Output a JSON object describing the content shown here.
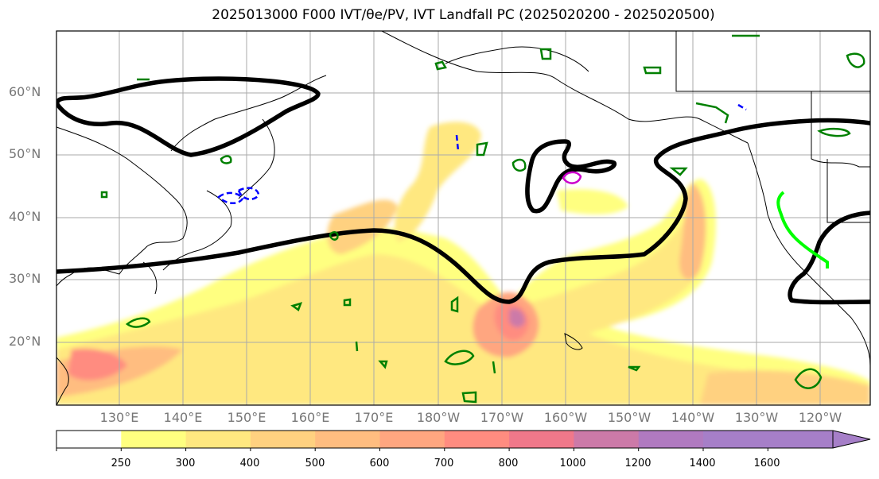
{
  "title": "2025013000 F000 IVT/θe/PV, IVT Landfall PC (2025020200 - 2025020500)",
  "map": {
    "lat_labels": [
      "60°N",
      "50°N",
      "40°N",
      "30°N",
      "20°N"
    ],
    "lat_values": [
      60,
      50,
      40,
      30,
      20
    ],
    "lon_labels": [
      "130°E",
      "140°E",
      "150°E",
      "160°E",
      "170°E",
      "180°W",
      "170°W",
      "160°W",
      "150°W",
      "140°W",
      "130°W",
      "120°W"
    ],
    "lon_values": [
      130,
      140,
      150,
      160,
      170,
      180,
      190,
      200,
      210,
      220,
      230,
      240
    ],
    "extent": {
      "lon_min": 121,
      "lon_max": 248.5,
      "lat_min": 10,
      "lat_max": 70
    },
    "colors": {
      "ivt_fill": [
        "#ffff80",
        "#ffe880",
        "#ffd180",
        "#ffbd80",
        "#ffa680",
        "#ff8c80",
        "#f0788a",
        "#cc7aa8",
        "#b07ac0",
        "#a67fc8"
      ],
      "thick_contour": "#000000",
      "green_contour": "#008000",
      "blue_contour": "#0000ff",
      "magenta_contour": "#cc00cc",
      "lime_contour": "#00ff00"
    }
  },
  "colorbar": {
    "ticks": [
      "250",
      "300",
      "400",
      "500",
      "600",
      "700",
      "800",
      "1000",
      "1200",
      "1400",
      "1600"
    ],
    "colors": [
      "#ffffff",
      "#ffff80",
      "#ffe880",
      "#ffd180",
      "#ffbd80",
      "#ffa680",
      "#ff8c80",
      "#f0788a",
      "#cc7aa8",
      "#b07ac0",
      "#a67fc8",
      "#a67fc8"
    ]
  }
}
